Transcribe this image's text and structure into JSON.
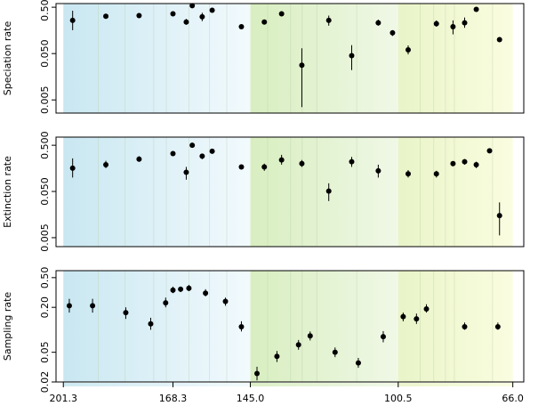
{
  "chart_data": [
    {
      "type": "scatter",
      "ylabel": "Speciation rate",
      "log_y": true,
      "yticks": [
        0.005,
        0.05,
        0.5
      ],
      "ytick_labels": [
        "0.005",
        "0.050",
        "0.500"
      ],
      "ylim": [
        0.0026,
        0.6
      ],
      "points": [
        {
          "x": 198.5,
          "y": 0.26,
          "lo": 0.16,
          "hi": 0.42
        },
        {
          "x": 188.5,
          "y": 0.32,
          "lo": 0.29,
          "hi": 0.35
        },
        {
          "x": 178.5,
          "y": 0.33,
          "lo": 0.3,
          "hi": 0.36
        },
        {
          "x": 168.3,
          "y": 0.36,
          "lo": 0.32,
          "hi": 0.4
        },
        {
          "x": 164.3,
          "y": 0.24,
          "lo": 0.21,
          "hi": 0.28
        },
        {
          "x": 162.5,
          "y": 0.54,
          "lo": 0.5,
          "hi": 0.58
        },
        {
          "x": 159.5,
          "y": 0.31,
          "lo": 0.25,
          "hi": 0.38
        },
        {
          "x": 156.5,
          "y": 0.43,
          "lo": 0.39,
          "hi": 0.47
        },
        {
          "x": 147.7,
          "y": 0.19,
          "lo": 0.17,
          "hi": 0.21
        },
        {
          "x": 140.8,
          "y": 0.24,
          "lo": 0.22,
          "hi": 0.26
        },
        {
          "x": 135.6,
          "y": 0.36,
          "lo": 0.33,
          "hi": 0.4
        },
        {
          "x": 129.5,
          "y": 0.028,
          "lo": 0.0035,
          "hi": 0.065
        },
        {
          "x": 121.4,
          "y": 0.26,
          "lo": 0.2,
          "hi": 0.33
        },
        {
          "x": 114.5,
          "y": 0.045,
          "lo": 0.022,
          "hi": 0.076
        },
        {
          "x": 106.5,
          "y": 0.23,
          "lo": 0.2,
          "hi": 0.27
        },
        {
          "x": 102.2,
          "y": 0.14,
          "lo": 0.12,
          "hi": 0.16
        },
        {
          "x": 97.5,
          "y": 0.06,
          "lo": 0.048,
          "hi": 0.075
        },
        {
          "x": 89.0,
          "y": 0.22,
          "lo": 0.19,
          "hi": 0.26
        },
        {
          "x": 84.0,
          "y": 0.19,
          "lo": 0.13,
          "hi": 0.26
        },
        {
          "x": 80.5,
          "y": 0.23,
          "lo": 0.18,
          "hi": 0.3
        },
        {
          "x": 77.0,
          "y": 0.45,
          "lo": 0.42,
          "hi": 0.49
        },
        {
          "x": 70.0,
          "y": 0.1,
          "lo": 0.091,
          "hi": 0.11
        }
      ]
    },
    {
      "type": "scatter",
      "ylabel": "Extinction rate",
      "log_y": true,
      "yticks": [
        0.005,
        0.05,
        0.5
      ],
      "ytick_labels": [
        "0.005",
        "0.050",
        "0.500"
      ],
      "ylim": [
        0.0032,
        0.75
      ],
      "points": [
        {
          "x": 198.5,
          "y": 0.16,
          "lo": 0.1,
          "hi": 0.26
        },
        {
          "x": 188.5,
          "y": 0.19,
          "lo": 0.16,
          "hi": 0.23
        },
        {
          "x": 178.5,
          "y": 0.25,
          "lo": 0.22,
          "hi": 0.29
        },
        {
          "x": 168.3,
          "y": 0.33,
          "lo": 0.3,
          "hi": 0.36
        },
        {
          "x": 164.3,
          "y": 0.13,
          "lo": 0.09,
          "hi": 0.17
        },
        {
          "x": 162.5,
          "y": 0.5,
          "lo": 0.44,
          "hi": 0.56
        },
        {
          "x": 159.5,
          "y": 0.29,
          "lo": 0.25,
          "hi": 0.33
        },
        {
          "x": 156.5,
          "y": 0.37,
          "lo": 0.33,
          "hi": 0.41
        },
        {
          "x": 147.7,
          "y": 0.17,
          "lo": 0.15,
          "hi": 0.19
        },
        {
          "x": 140.8,
          "y": 0.17,
          "lo": 0.14,
          "hi": 0.2
        },
        {
          "x": 135.6,
          "y": 0.24,
          "lo": 0.19,
          "hi": 0.31
        },
        {
          "x": 129.5,
          "y": 0.2,
          "lo": 0.17,
          "hi": 0.24
        },
        {
          "x": 121.4,
          "y": 0.051,
          "lo": 0.031,
          "hi": 0.075
        },
        {
          "x": 114.5,
          "y": 0.22,
          "lo": 0.17,
          "hi": 0.28
        },
        {
          "x": 106.5,
          "y": 0.14,
          "lo": 0.1,
          "hi": 0.19
        },
        {
          "x": 97.5,
          "y": 0.12,
          "lo": 0.1,
          "hi": 0.145
        },
        {
          "x": 89.0,
          "y": 0.12,
          "lo": 0.1,
          "hi": 0.14
        },
        {
          "x": 84.0,
          "y": 0.2,
          "lo": 0.18,
          "hi": 0.22
        },
        {
          "x": 80.5,
          "y": 0.22,
          "lo": 0.19,
          "hi": 0.25
        },
        {
          "x": 77.0,
          "y": 0.19,
          "lo": 0.16,
          "hi": 0.22
        },
        {
          "x": 73.0,
          "y": 0.38,
          "lo": 0.34,
          "hi": 0.42
        },
        {
          "x": 70.0,
          "y": 0.015,
          "lo": 0.0056,
          "hi": 0.029
        }
      ]
    },
    {
      "type": "scatter",
      "ylabel": "Sampling rate",
      "log_y": true,
      "xlabel": "",
      "yticks": [
        0.02,
        0.05,
        0.2,
        0.5
      ],
      "ytick_labels": [
        "0.02",
        "0.05",
        "0.20",
        "0.50"
      ],
      "ylim": [
        0.02,
        0.62
      ],
      "points": [
        {
          "x": 199.5,
          "y": 0.21,
          "lo": 0.17,
          "hi": 0.26
        },
        {
          "x": 192.5,
          "y": 0.21,
          "lo": 0.17,
          "hi": 0.26
        },
        {
          "x": 182.5,
          "y": 0.17,
          "lo": 0.14,
          "hi": 0.2
        },
        {
          "x": 175.0,
          "y": 0.12,
          "lo": 0.1,
          "hi": 0.145
        },
        {
          "x": 170.5,
          "y": 0.23,
          "lo": 0.2,
          "hi": 0.27
        },
        {
          "x": 168.3,
          "y": 0.34,
          "lo": 0.31,
          "hi": 0.38
        },
        {
          "x": 166.0,
          "y": 0.35,
          "lo": 0.32,
          "hi": 0.38
        },
        {
          "x": 163.5,
          "y": 0.36,
          "lo": 0.33,
          "hi": 0.4
        },
        {
          "x": 158.5,
          "y": 0.31,
          "lo": 0.28,
          "hi": 0.35
        },
        {
          "x": 152.5,
          "y": 0.24,
          "lo": 0.21,
          "hi": 0.27
        },
        {
          "x": 147.7,
          "y": 0.11,
          "lo": 0.095,
          "hi": 0.13
        },
        {
          "x": 143.0,
          "y": 0.026,
          "lo": 0.021,
          "hi": 0.032
        },
        {
          "x": 137.0,
          "y": 0.044,
          "lo": 0.037,
          "hi": 0.052
        },
        {
          "x": 130.5,
          "y": 0.063,
          "lo": 0.054,
          "hi": 0.073
        },
        {
          "x": 127.0,
          "y": 0.083,
          "lo": 0.072,
          "hi": 0.095
        },
        {
          "x": 119.5,
          "y": 0.05,
          "lo": 0.043,
          "hi": 0.058
        },
        {
          "x": 112.5,
          "y": 0.036,
          "lo": 0.031,
          "hi": 0.042
        },
        {
          "x": 105.0,
          "y": 0.081,
          "lo": 0.068,
          "hi": 0.096
        },
        {
          "x": 99.0,
          "y": 0.15,
          "lo": 0.13,
          "hi": 0.17
        },
        {
          "x": 95.0,
          "y": 0.14,
          "lo": 0.12,
          "hi": 0.165
        },
        {
          "x": 92.0,
          "y": 0.19,
          "lo": 0.17,
          "hi": 0.22
        },
        {
          "x": 80.5,
          "y": 0.11,
          "lo": 0.1,
          "hi": 0.125
        },
        {
          "x": 70.5,
          "y": 0.11,
          "lo": 0.1,
          "hi": 0.125
        }
      ]
    }
  ],
  "x_axis": {
    "reversed": true,
    "xlim": [
      203.5,
      62.7
    ],
    "ticks": [
      201.3,
      168.3,
      145.0,
      100.5,
      66.0
    ],
    "tick_labels": [
      "201.3",
      "168.3",
      "145.0",
      "100.5",
      "66.0"
    ],
    "band_range": [
      201.3,
      66.0
    ],
    "minor_boundaries": [
      190.8,
      182.7,
      174.1,
      170.3,
      163.5,
      157.3,
      152.1,
      139.8,
      132.9,
      129.4,
      125.0,
      113.0,
      93.9,
      89.8,
      86.3,
      83.6,
      72.1
    ],
    "periods": [
      {
        "from": 201.3,
        "to": 145.0,
        "color_old": "#c9e7f1",
        "color_young": "#f2fafd"
      },
      {
        "from": 145.0,
        "to": 100.5,
        "color_old": "#d8eec0",
        "color_young": "#f0f8e6"
      },
      {
        "from": 100.5,
        "to": 66.0,
        "color_old": "#e9f4c8",
        "color_young": "#fafde0"
      }
    ]
  }
}
